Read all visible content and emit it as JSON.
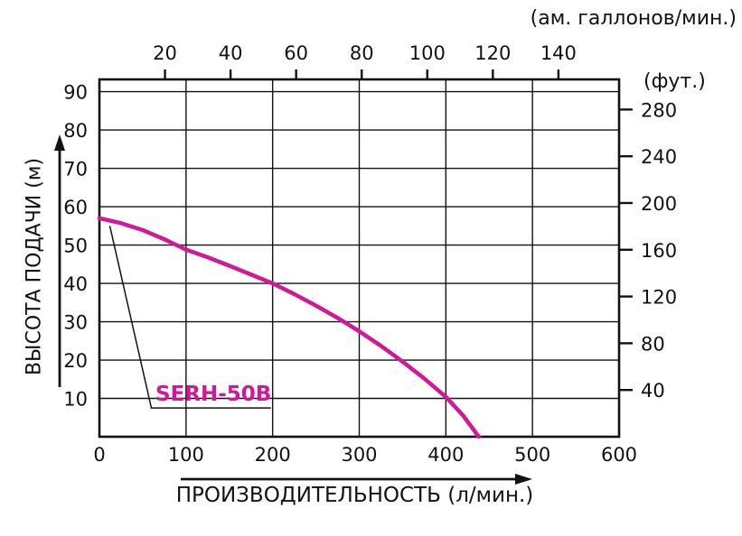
{
  "chart_data": {
    "type": "line",
    "title": "",
    "grid": true,
    "x_axis": {
      "label": "ПРОИЗВОДИТЕЛЬНОСТЬ (л/мин.)",
      "unit": "л/мин.",
      "ticks": [
        0,
        100,
        200,
        300,
        400,
        500,
        600
      ],
      "range": [
        0,
        600
      ]
    },
    "y_axis": {
      "label": "ВЫСОТА ПОДАЧИ (м)",
      "unit": "м",
      "ticks": [
        90,
        80,
        70,
        60,
        50,
        40,
        30,
        20,
        10
      ],
      "range": [
        0,
        93
      ]
    },
    "top_axis": {
      "label": "(ам. галлонов/мин.)",
      "unit": "ам. галлонов/мин.",
      "ticks": [
        20,
        40,
        60,
        80,
        100,
        120,
        140
      ],
      "lpm_per_gal": 3.7854
    },
    "right_axis": {
      "label": "(фут.)",
      "unit": "фут.",
      "ticks": [
        280,
        240,
        200,
        160,
        120,
        80,
        40
      ],
      "ft_per_m": 3.2808
    },
    "series": [
      {
        "name": "SERH-50B",
        "color": "#d11896",
        "points": [
          [
            0,
            57
          ],
          [
            25,
            55.7
          ],
          [
            50,
            53.9
          ],
          [
            75,
            51.5
          ],
          [
            100,
            48.8
          ],
          [
            125,
            46.8
          ],
          [
            150,
            44.6
          ],
          [
            175,
            42.3
          ],
          [
            200,
            40
          ],
          [
            225,
            37.2
          ],
          [
            250,
            34.2
          ],
          [
            275,
            31
          ],
          [
            300,
            27.5
          ],
          [
            325,
            23.7
          ],
          [
            350,
            19.6
          ],
          [
            375,
            15.2
          ],
          [
            400,
            10.4
          ],
          [
            420,
            5.5
          ],
          [
            438,
            0
          ]
        ]
      }
    ],
    "annotation": {
      "text": "SERH-50B",
      "anchor": [
        12,
        55
      ],
      "corner": [
        60,
        7.5
      ],
      "end": [
        198,
        7.5
      ]
    }
  },
  "colors": {
    "curve": "#d11896",
    "axis": "#121216",
    "background": "#ffffff"
  }
}
